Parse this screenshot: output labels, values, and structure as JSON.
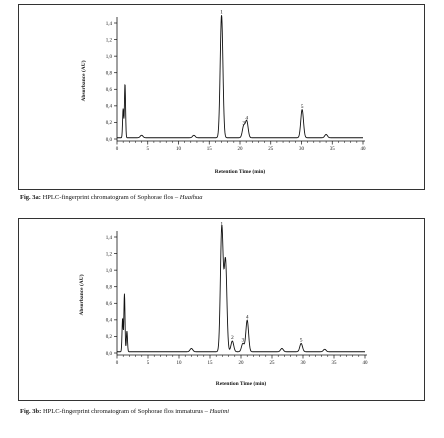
{
  "chart_data": [
    {
      "type": "line",
      "ylabel": "Absorbance (AU)",
      "xlabel": "Retention Time (min)",
      "xlim": [
        0,
        40
      ],
      "ylim": [
        0,
        1.4
      ],
      "x_ticks": [
        0,
        5,
        10,
        15,
        20,
        25,
        30,
        35,
        40
      ],
      "y_ticks": [
        "0,0",
        "0,2",
        "0,4",
        "0,6",
        "0,8",
        "1,0",
        "1,2",
        "1,4"
      ],
      "y_tick_values": [
        0,
        0.2,
        0.4,
        0.6,
        0.8,
        1.0,
        1.2,
        1.4
      ],
      "peaks": [
        {
          "x": 1.0,
          "y": 0.35
        },
        {
          "x": 1.3,
          "y": 0.65
        },
        {
          "x": 4.0,
          "y": 0.03
        },
        {
          "x": 12.5,
          "y": 0.03
        },
        {
          "x": 17.0,
          "y": 1.48,
          "label": "1"
        },
        {
          "x": 20.6,
          "y": 0.14,
          "label": "3"
        },
        {
          "x": 21.1,
          "y": 0.2,
          "label": "4"
        },
        {
          "x": 30.1,
          "y": 0.34,
          "label": "5"
        },
        {
          "x": 34.0,
          "y": 0.04
        }
      ],
      "caption_bold": "Fig. 3a:",
      "caption_text": " HPLC-fingerprint chromatogram of Sophorae flos – ",
      "caption_italic": "Huaihua"
    },
    {
      "type": "line",
      "ylabel": "Absorbance (AU)",
      "xlabel": "Retention Time (min)",
      "xlim": [
        0,
        40
      ],
      "ylim": [
        0,
        1.4
      ],
      "x_ticks": [
        0,
        5,
        10,
        15,
        20,
        25,
        30,
        35,
        40
      ],
      "y_ticks": [
        "0,0",
        "0,2",
        "0,4",
        "0,6",
        "0,8",
        "1,0",
        "1,2",
        "1,4"
      ],
      "y_tick_values": [
        0,
        0.2,
        0.4,
        0.6,
        0.8,
        1.0,
        1.2,
        1.4
      ],
      "peaks": [
        {
          "x": 0.9,
          "y": 0.4
        },
        {
          "x": 1.2,
          "y": 0.7
        },
        {
          "x": 1.6,
          "y": 0.25
        },
        {
          "x": 12.0,
          "y": 0.04
        },
        {
          "x": 16.9,
          "y": 1.5,
          "label": "1"
        },
        {
          "x": 17.5,
          "y": 1.1
        },
        {
          "x": 18.6,
          "y": 0.13,
          "label": "2"
        },
        {
          "x": 20.3,
          "y": 0.1,
          "label": "3"
        },
        {
          "x": 21.0,
          "y": 0.38,
          "label": "4"
        },
        {
          "x": 26.6,
          "y": 0.04
        },
        {
          "x": 29.7,
          "y": 0.1,
          "label": "5"
        },
        {
          "x": 33.5,
          "y": 0.03
        }
      ],
      "caption_bold": "Fig. 3b:",
      "caption_text": " HPLC-fingerprint chromatogram of Sophorae flos immaturus – ",
      "caption_italic": "Huaimi"
    }
  ]
}
